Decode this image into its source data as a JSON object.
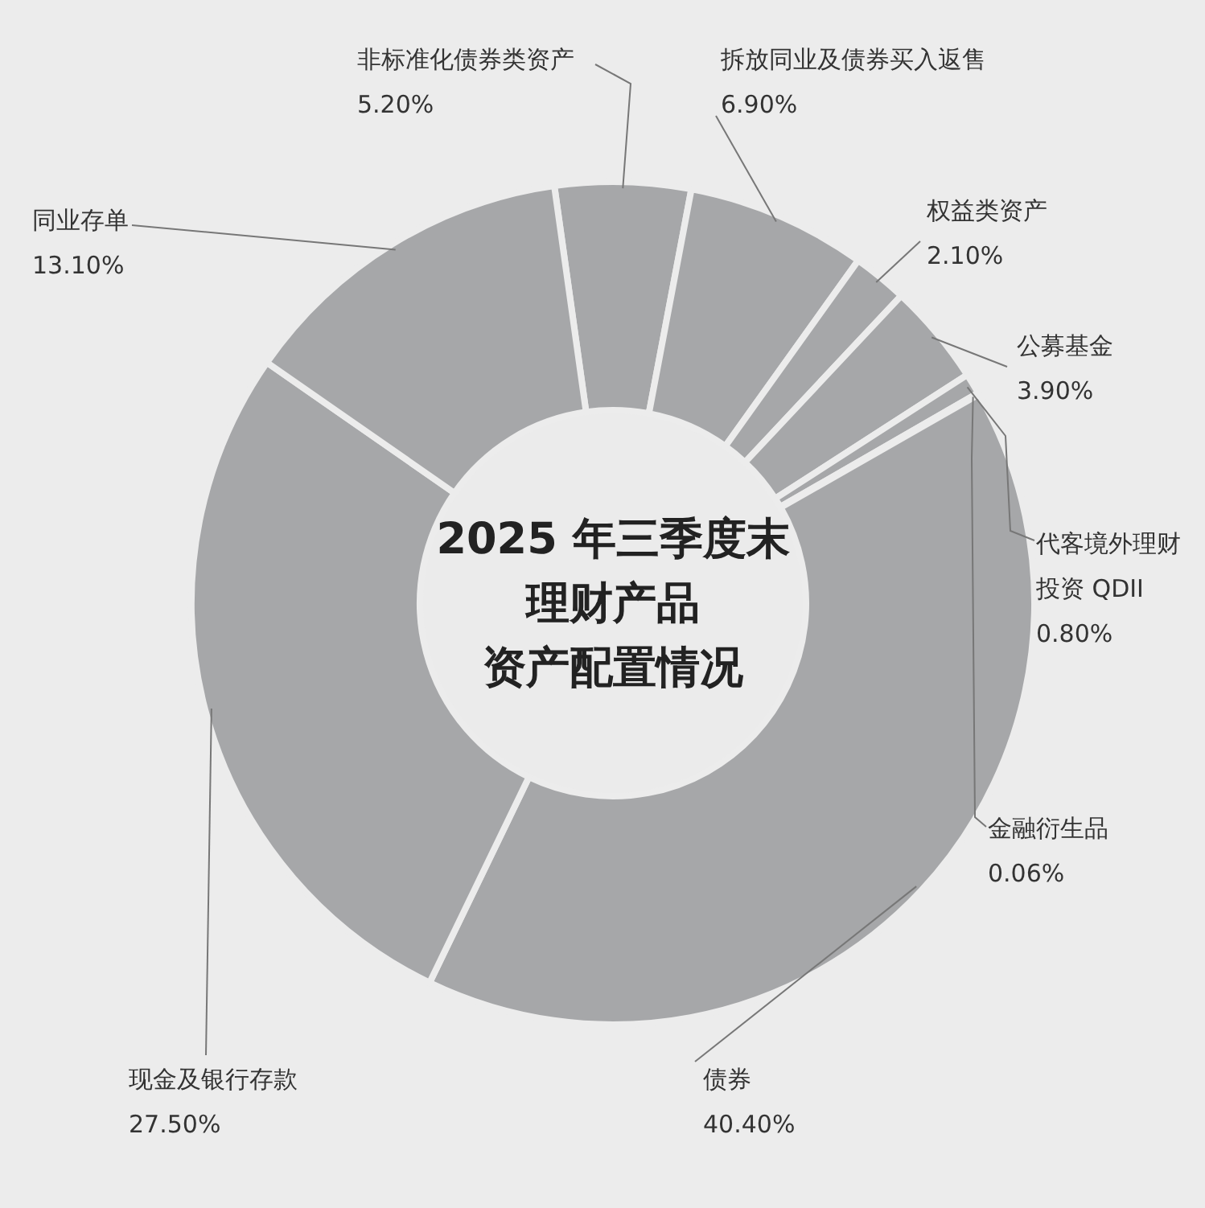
{
  "chart_data": {
    "type": "donut",
    "title": "2025 年三季度末理财产品资产配置情况",
    "categories": [
      "非标准化债券类资产",
      "拆放同业及债券买入返售",
      "权益类资产",
      "公募基金",
      "代客境外理财投资 QDII",
      "金融衍生品",
      "债券",
      "现金及银行存款",
      "同业存单"
    ],
    "values": [
      5.2,
      6.9,
      2.1,
      3.9,
      0.8,
      0.06,
      40.4,
      27.5,
      13.1
    ],
    "value_labels": [
      "5.20%",
      "6.90%",
      "2.10%",
      "3.90%",
      "0.80%",
      "0.06%",
      "40.40%",
      "27.50%",
      "13.10%"
    ],
    "colors": [
      "#a6a7a9",
      "#a6a7a9",
      "#a6a7a9",
      "#a6a7a9",
      "#a6a7a9",
      "#a6a7a9",
      "#a6a7a9",
      "#a6a7a9",
      "#a6a7a9"
    ]
  }
}
